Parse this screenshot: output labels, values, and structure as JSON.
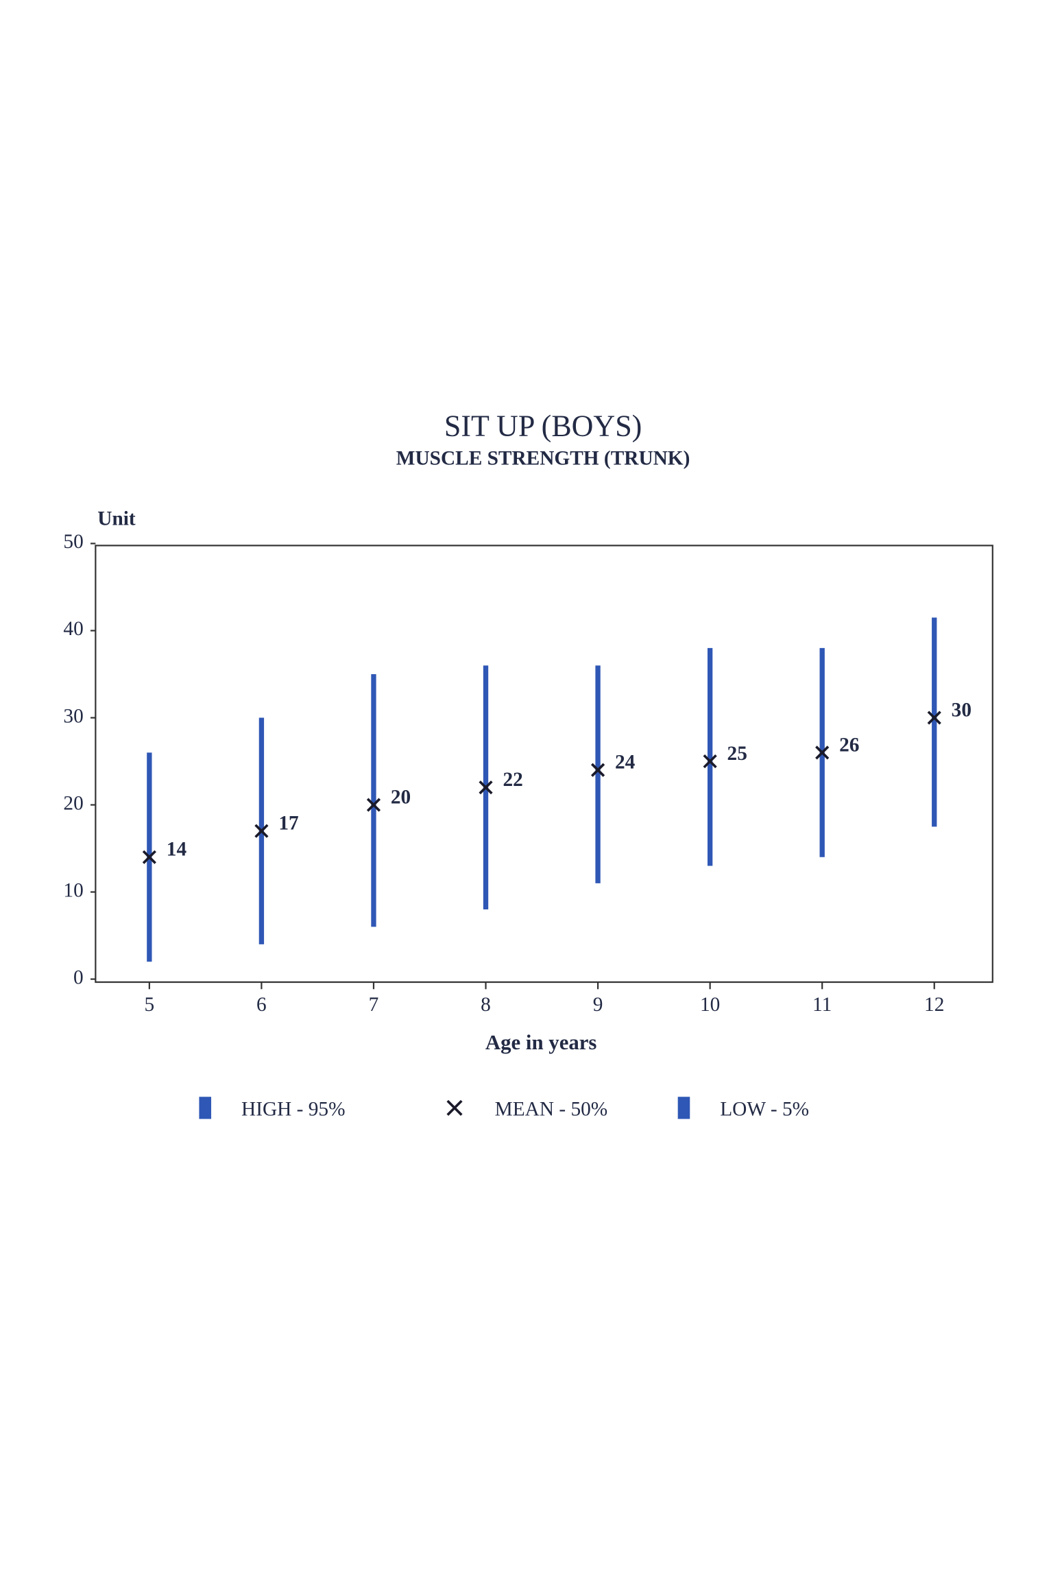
{
  "chart_data": {
    "type": "range",
    "title": "SIT UP   (BOYS)",
    "subtitle": "MUSCLE STRENGTH   (TRUNK)",
    "y_label": "Unit",
    "x_label": "Age in years",
    "x": [
      5,
      6,
      7,
      8,
      9,
      10,
      11,
      12
    ],
    "xlim": [
      4.52,
      12.52
    ],
    "xticks": [
      5,
      6,
      7,
      8,
      9,
      10,
      11,
      12
    ],
    "ylim": [
      0,
      50
    ],
    "yticks": [
      0,
      10,
      20,
      30,
      40,
      50
    ],
    "series": [
      {
        "name": "HIGH - 95%",
        "color": "#2f57b5",
        "marker": "bar",
        "values": [
          26,
          30,
          35,
          36,
          36,
          38,
          38,
          41.5
        ]
      },
      {
        "name": "MEAN - 50%",
        "color": "#1a1a2a",
        "marker": "x",
        "values": [
          14,
          17,
          20,
          22,
          24,
          25,
          26,
          30
        ]
      },
      {
        "name": "LOW - 5%",
        "color": "#2f57b5",
        "marker": "bar",
        "values": [
          2,
          4,
          6,
          8,
          11,
          13,
          14,
          17.5
        ]
      }
    ]
  }
}
